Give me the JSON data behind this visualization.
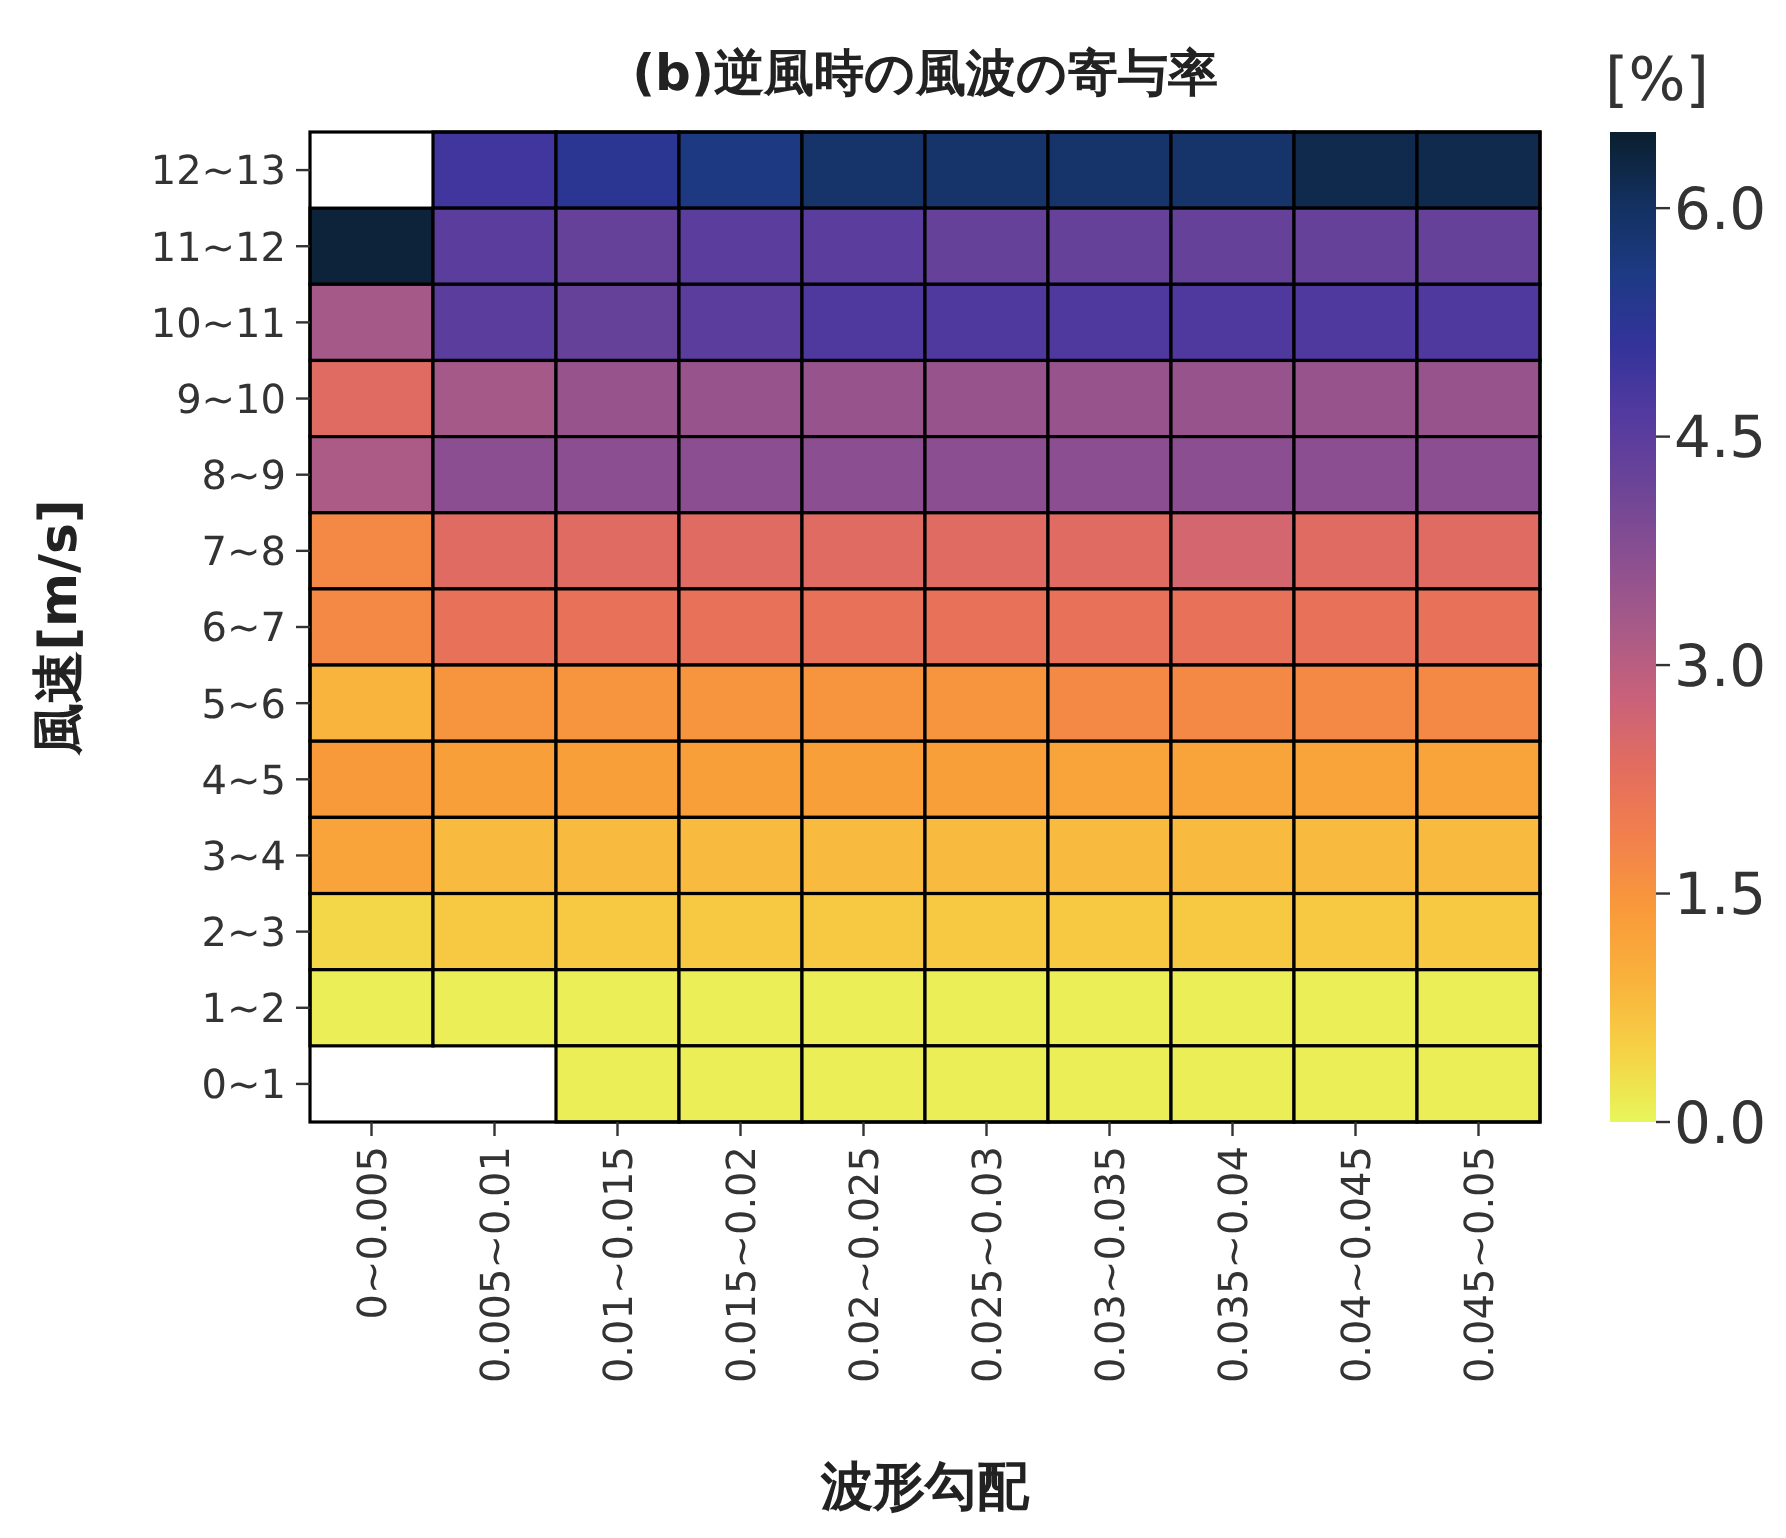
{
  "chart_data": {
    "type": "heatmap",
    "title": "(b)逆風時の風波の寄与率",
    "xlabel": "波形勾配",
    "ylabel": "風速[m/s]",
    "clabel": "[%]",
    "categories": [
      "0~0.005",
      "0.005~0.01",
      "0.01~0.015",
      "0.015~0.02",
      "0.02~0.025",
      "0.025~0.03",
      "0.03~0.035",
      "0.035~0.04",
      "0.04~0.045",
      "0.045~0.05"
    ],
    "y_categories": [
      "12~13",
      "11~12",
      "10~11",
      "9~10",
      "8~9",
      "7~8",
      "6~7",
      "5~6",
      "4~5",
      "3~4",
      "2~3",
      "1~2",
      "0~1"
    ],
    "cells": [
      [
        null,
        4.9,
        5.3,
        5.6,
        5.9,
        5.9,
        5.9,
        5.9,
        6.2,
        6.2
      ],
      [
        6.4,
        4.5,
        4.3,
        4.5,
        4.5,
        4.3,
        4.3,
        4.3,
        4.3,
        4.3
      ],
      [
        3.3,
        4.5,
        4.3,
        4.5,
        4.7,
        4.7,
        4.7,
        4.7,
        4.7,
        4.7
      ],
      [
        2.4,
        3.3,
        3.5,
        3.5,
        3.5,
        3.5,
        3.5,
        3.5,
        3.5,
        3.5
      ],
      [
        3.2,
        3.7,
        3.7,
        3.7,
        3.7,
        3.7,
        3.7,
        3.7,
        3.7,
        3.7
      ],
      [
        1.7,
        2.4,
        2.4,
        2.4,
        2.4,
        2.4,
        2.4,
        2.6,
        2.4,
        2.4
      ],
      [
        1.7,
        2.2,
        2.2,
        2.2,
        2.2,
        2.2,
        2.2,
        2.2,
        2.2,
        2.2
      ],
      [
        0.9,
        1.5,
        1.5,
        1.5,
        1.5,
        1.5,
        1.7,
        1.7,
        1.7,
        1.7
      ],
      [
        1.4,
        1.3,
        1.3,
        1.3,
        1.3,
        1.3,
        1.2,
        1.2,
        1.2,
        1.2
      ],
      [
        1.2,
        0.8,
        0.8,
        0.8,
        0.8,
        0.8,
        0.8,
        0.8,
        0.8,
        0.8
      ],
      [
        0.4,
        0.6,
        0.6,
        0.6,
        0.6,
        0.6,
        0.6,
        0.6,
        0.6,
        0.6
      ],
      [
        0.1,
        0.1,
        0.1,
        0.1,
        0.1,
        0.1,
        0.1,
        0.1,
        0.1,
        0.1
      ],
      [
        null,
        null,
        0.1,
        0.1,
        0.1,
        0.1,
        0.1,
        0.1,
        0.1,
        0.1
      ]
    ],
    "clim": [
      0,
      6.5
    ],
    "cticks": [
      {
        "value": 0,
        "label": "0.0"
      },
      {
        "value": 1.5,
        "label": "1.5"
      },
      {
        "value": 3,
        "label": "3.0"
      },
      {
        "value": 4.5,
        "label": "4.5"
      },
      {
        "value": 6,
        "label": "6.0"
      }
    ]
  }
}
